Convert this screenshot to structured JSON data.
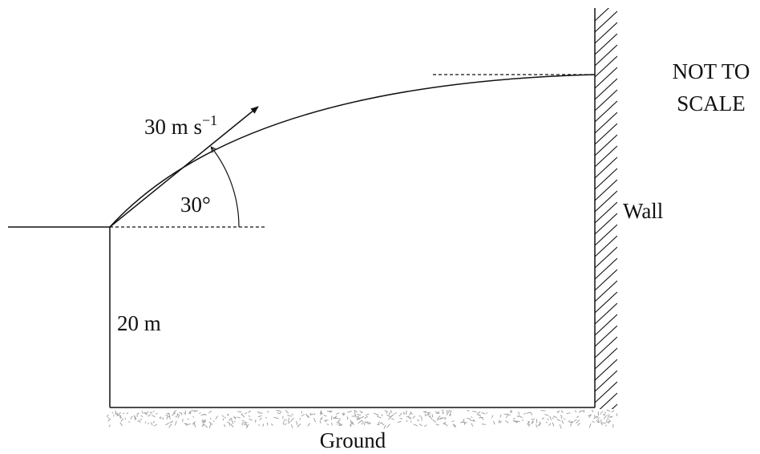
{
  "labels": {
    "speed_value": "30 m s",
    "speed_exponent": "−1",
    "angle": "30°",
    "height": "20 m",
    "wall": "Wall",
    "ground": "Ground",
    "scale_line1": "NOT TO",
    "scale_line2": "SCALE"
  },
  "colors": {
    "ink": "#111111",
    "ground_texture": "#9a9a9a"
  }
}
